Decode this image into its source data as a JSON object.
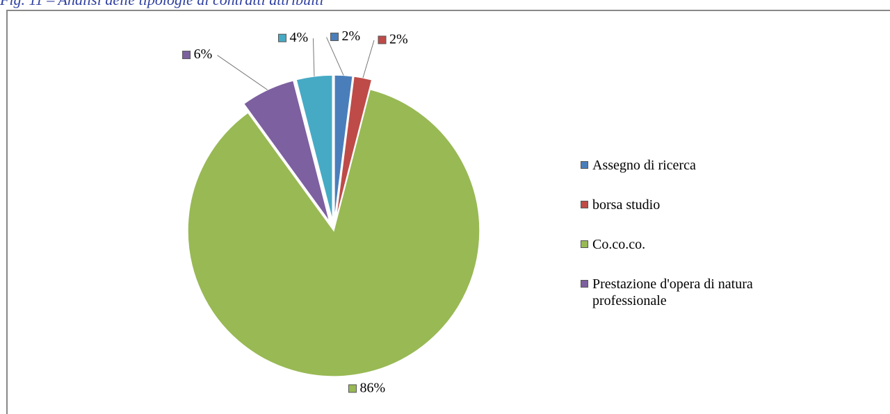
{
  "chart_data": {
    "type": "pie",
    "title": "Fig. 11 – Analisi delle tipologie di contratti attribuiti",
    "categories": [
      "Assegno di ricerca",
      "borsa studio",
      "Co.co.co.",
      "Prestazione d'opera di natura professionale",
      null
    ],
    "values": [
      2,
      2,
      86,
      6,
      4
    ],
    "value_labels": [
      "2%",
      "2%",
      "86%",
      "6%",
      "4%"
    ],
    "colors": [
      "#4a7ebb",
      "#be4b48",
      "#98b954",
      "#7d60a0",
      "#46aac5"
    ],
    "legend": "right"
  }
}
